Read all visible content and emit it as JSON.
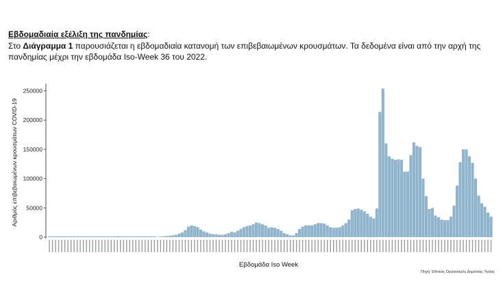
{
  "heading": {
    "title": "Εβδομαδιαία εξέλιξη της πανδημίας",
    "colon": ":"
  },
  "paragraph": {
    "prefix": "Στο ",
    "bold": "Διάγραμμα 1",
    "rest": " παρουσιάζεται η εβδομαδιαία κατανομή των επιβεβαιωμένων κρουσμάτων. Τα δεδομένα είναι από την αρχή της πανδημίας μέχρι την εβδομάδα Iso-Week 36 του 2022."
  },
  "chart_data": {
    "type": "bar",
    "xlabel": "Εβδομάδα Iso Week",
    "ylabel": "Αριθμός επιβεβαιωμένων κρουσμάτων COVID-19",
    "ylim": [
      0,
      260000
    ],
    "yticks": [
      0,
      50000,
      100000,
      150000,
      200000,
      250000
    ],
    "grid": false,
    "bar_color": "#8fb4cc",
    "values": [
      0,
      0,
      0,
      0,
      0,
      0,
      0,
      0,
      0,
      0,
      0,
      0,
      0,
      0,
      0,
      0,
      0,
      0,
      0,
      0,
      0,
      0,
      0,
      0,
      0,
      0,
      0,
      0,
      0,
      0,
      0,
      0,
      0,
      0,
      0,
      500,
      1000,
      1500,
      2000,
      2500,
      3000,
      4000,
      6000,
      8000,
      12000,
      18000,
      20000,
      19000,
      17000,
      13000,
      10000,
      8000,
      6000,
      5000,
      5000,
      4000,
      4000,
      5000,
      7000,
      9000,
      8000,
      11000,
      14000,
      17000,
      19000,
      20000,
      22000,
      25000,
      24000,
      22000,
      20000,
      16000,
      17000,
      16000,
      14000,
      11000,
      7000,
      5000,
      3000,
      3000,
      7000,
      14000,
      18000,
      20000,
      20000,
      20000,
      22000,
      24000,
      24000,
      23000,
      20000,
      17000,
      16000,
      16000,
      17000,
      20000,
      24000,
      30000,
      46000,
      48000,
      49000,
      47000,
      44000,
      40000,
      35000,
      32000,
      49000,
      214000,
      254000,
      160000,
      138000,
      134000,
      132000,
      133000,
      132000,
      112000,
      112000,
      140000,
      162000,
      156000,
      154000,
      100000,
      70000,
      48000,
      50000,
      37000,
      34000,
      30000,
      29000,
      29000,
      35000,
      54000,
      88000,
      128000,
      150000,
      150000,
      138000,
      127000,
      100000,
      71000,
      58000,
      52000,
      42000,
      35000
    ]
  },
  "source_note": "Πηγή: Εθνικός Οργανισμός Δημόσιας Υγείας"
}
